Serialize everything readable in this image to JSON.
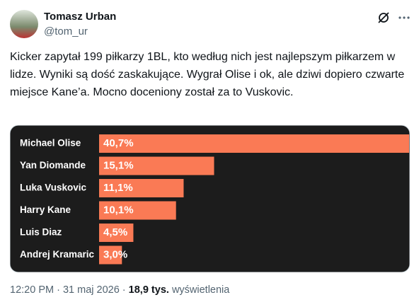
{
  "author": {
    "name": "Tomasz Urban",
    "handle": "@tom_ur"
  },
  "text": "Kicker zapytał 199 piłkarzy 1BL, kto według nich jest najlepszym piłkarzem w lidze. Wyniki są dość zaskakujące. Wygrał Olise i ok, ale dziwi dopiero czwarte miejsce Kane’a. Mocno doceniony został za to Vuskovic.",
  "chart_data": {
    "type": "bar",
    "orientation": "horizontal",
    "categories": [
      "Michael Olise",
      "Yan Diomande",
      "Luka Vuskovic",
      "Harry Kane",
      "Luis Diaz",
      "Andrej Kramaric"
    ],
    "values": [
      40.7,
      15.1,
      11.1,
      10.1,
      4.5,
      3.0
    ],
    "value_labels": [
      "40,7%",
      "15,1%",
      "11,1%",
      "10,1%",
      "4,5%",
      "3,0%"
    ],
    "color": "#fa7a55"
  },
  "footer": {
    "time": "12:20 PM",
    "date": "31 maj 2026",
    "views": "18,9 tys.",
    "views_label": "wyświetlenia"
  }
}
